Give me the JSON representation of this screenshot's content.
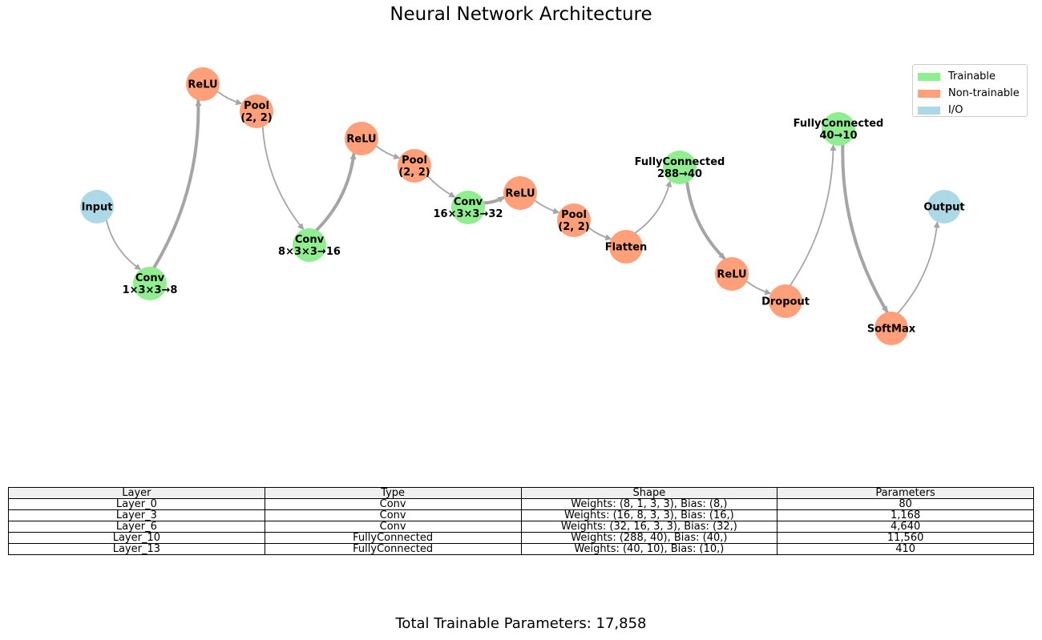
{
  "title": "Neural Network Architecture",
  "colors": {
    "trainable": "#90ee90",
    "non_trainable": "#ffa07a",
    "io": "#add8e6",
    "edge": "#a5a5a5"
  },
  "legend": [
    {
      "label": "Trainable",
      "kind": "trainable"
    },
    {
      "label": "Non-trainable",
      "kind": "non_trainable"
    },
    {
      "label": "I/O",
      "kind": "io"
    }
  ],
  "nodes": [
    {
      "id": "input",
      "lines": [
        "Input"
      ],
      "kind": "io"
    },
    {
      "id": "conv1",
      "lines": [
        "Conv",
        "1×3×3→8"
      ],
      "kind": "trainable"
    },
    {
      "id": "relu1",
      "lines": [
        "ReLU"
      ],
      "kind": "non_trainable"
    },
    {
      "id": "pool1",
      "lines": [
        "Pool",
        "(2, 2)"
      ],
      "kind": "non_trainable"
    },
    {
      "id": "conv2",
      "lines": [
        "Conv",
        "8×3×3→16"
      ],
      "kind": "trainable"
    },
    {
      "id": "relu2",
      "lines": [
        "ReLU"
      ],
      "kind": "non_trainable"
    },
    {
      "id": "pool2",
      "lines": [
        "Pool",
        "(2, 2)"
      ],
      "kind": "non_trainable"
    },
    {
      "id": "conv3",
      "lines": [
        "Conv",
        "16×3×3→32"
      ],
      "kind": "trainable"
    },
    {
      "id": "relu3",
      "lines": [
        "ReLU"
      ],
      "kind": "non_trainable"
    },
    {
      "id": "pool3",
      "lines": [
        "Pool",
        "(2, 2)"
      ],
      "kind": "non_trainable"
    },
    {
      "id": "flatten",
      "lines": [
        "Flatten"
      ],
      "kind": "non_trainable"
    },
    {
      "id": "fc1",
      "lines": [
        "FullyConnected",
        "288→40"
      ],
      "kind": "trainable"
    },
    {
      "id": "relu4",
      "lines": [
        "ReLU"
      ],
      "kind": "non_trainable"
    },
    {
      "id": "dropout",
      "lines": [
        "Dropout"
      ],
      "kind": "non_trainable"
    },
    {
      "id": "fc2",
      "lines": [
        "FullyConnected",
        "40→10"
      ],
      "kind": "trainable"
    },
    {
      "id": "softmax",
      "lines": [
        "SoftMax"
      ],
      "kind": "non_trainable"
    },
    {
      "id": "output",
      "lines": [
        "Output"
      ],
      "kind": "io"
    }
  ],
  "edges": [
    {
      "from": "input",
      "to": "conv1"
    },
    {
      "from": "conv1",
      "to": "relu1",
      "weight": "thick"
    },
    {
      "from": "relu1",
      "to": "pool1",
      "arrow": true
    },
    {
      "from": "pool1",
      "to": "conv2"
    },
    {
      "from": "conv2",
      "to": "relu2",
      "weight": "thick"
    },
    {
      "from": "relu2",
      "to": "pool2",
      "arrow": true
    },
    {
      "from": "pool2",
      "to": "conv3"
    },
    {
      "from": "conv3",
      "to": "relu3",
      "weight": "thick"
    },
    {
      "from": "relu3",
      "to": "pool3",
      "arrow": true
    },
    {
      "from": "pool3",
      "to": "flatten",
      "arrow": true
    },
    {
      "from": "flatten",
      "to": "fc1"
    },
    {
      "from": "fc1",
      "to": "relu4",
      "weight": "thick"
    },
    {
      "from": "relu4",
      "to": "dropout",
      "arrow": true
    },
    {
      "from": "dropout",
      "to": "fc2"
    },
    {
      "from": "fc2",
      "to": "softmax",
      "weight": "thick"
    },
    {
      "from": "softmax",
      "to": "output",
      "arrow": true
    }
  ],
  "table": {
    "headers": [
      "Layer",
      "Type",
      "Shape",
      "Parameters"
    ],
    "rows": [
      [
        "Layer_0",
        "Conv",
        "Weights: (8, 1, 3, 3), Bias: (8,)",
        "80"
      ],
      [
        "Layer_3",
        "Conv",
        "Weights: (16, 8, 3, 3), Bias: (16,)",
        "1,168"
      ],
      [
        "Layer_6",
        "Conv",
        "Weights: (32, 16, 3, 3), Bias: (32,)",
        "4,640"
      ],
      [
        "Layer_10",
        "FullyConnected",
        "Weights: (288, 40), Bias: (40,)",
        "11,560"
      ],
      [
        "Layer_13",
        "FullyConnected",
        "Weights: (40, 10), Bias: (10,)",
        "410"
      ]
    ]
  },
  "total": "Total Trainable Parameters: 17,858"
}
